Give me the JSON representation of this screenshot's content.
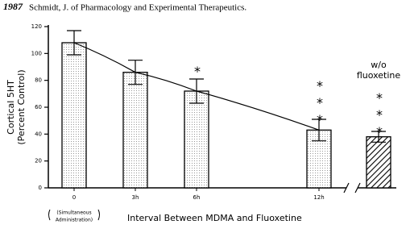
{
  "header": {
    "year": "1987",
    "citation": "Schmidt, J. of Pharmacology and Experimental Therapeutics."
  },
  "chart_data": {
    "type": "bar",
    "y_label": [
      "Cortical 5HT",
      "(Percent Control)"
    ],
    "x_label": "Interval Between MDMA and Fluoxetine",
    "categories": [
      "0",
      "3h",
      "6h",
      "12h",
      null
    ],
    "category_note": [
      "(Simultaneous",
      "Administration)"
    ],
    "values": [
      108,
      86,
      72,
      43,
      38
    ],
    "errors": [
      9,
      9,
      9,
      8,
      4
    ],
    "fills": [
      "dotted",
      "dotted",
      "dotted",
      "dotted",
      "hatched"
    ],
    "significance": [
      null,
      null,
      "*",
      "***",
      "***"
    ],
    "bar_note": [
      "w/o",
      "fluoxetine"
    ],
    "ylim": [
      0,
      120
    ],
    "yticks": [
      0,
      20,
      40,
      60,
      80,
      100,
      120
    ],
    "axis_break": true
  }
}
